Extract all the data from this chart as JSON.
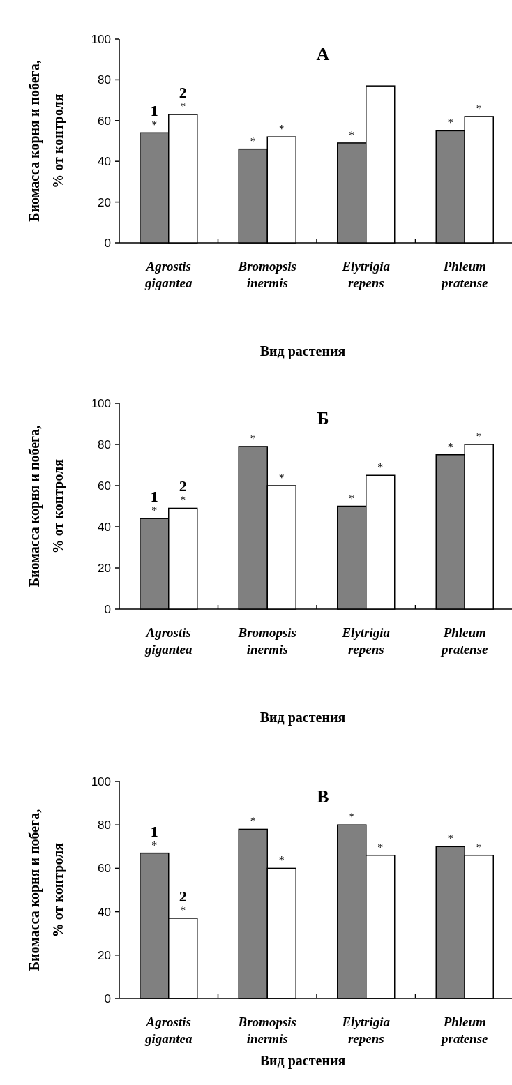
{
  "chart_data": [
    {
      "type": "bar",
      "title": "А",
      "categories": [
        "Agrostis gigantea",
        "Bromopsis inermis",
        "Elytrigia repens",
        "Phleum pratense"
      ],
      "xlabel": "Вид растения",
      "ylabel": "Биомасса корня и побега,\n% от контроля",
      "ylim": [
        0,
        100
      ],
      "yticks": [
        0,
        20,
        40,
        60,
        80,
        100
      ],
      "series": [
        {
          "name": "1",
          "color": "#808080",
          "values": [
            54,
            46,
            49,
            55
          ],
          "value_labels": [
            "*",
            "*",
            "*",
            "*"
          ]
        },
        {
          "name": "2",
          "color": "#ffffff",
          "values": [
            63,
            52,
            77,
            62
          ],
          "value_labels": [
            "*",
            "*",
            null,
            "*"
          ]
        }
      ]
    },
    {
      "type": "bar",
      "title": "Б",
      "categories": [
        "Agrostis gigantea",
        "Bromopsis inermis",
        "Elytrigia repens",
        "Phleum pratense"
      ],
      "xlabel": "Вид растения",
      "ylabel": "Биомасса корня и побега,\n% от контроля",
      "ylim": [
        0,
        100
      ],
      "yticks": [
        0,
        20,
        40,
        60,
        80,
        100
      ],
      "series": [
        {
          "name": "1",
          "color": "#808080",
          "values": [
            44,
            79,
            50,
            75
          ],
          "value_labels": [
            "*",
            "*",
            "*",
            "*"
          ]
        },
        {
          "name": "2",
          "color": "#ffffff",
          "values": [
            49,
            60,
            65,
            80
          ],
          "value_labels": [
            "*",
            "*",
            "*",
            "*"
          ]
        }
      ]
    },
    {
      "type": "bar",
      "title": "В",
      "categories": [
        "Agrostis gigantea",
        "Bromopsis inermis",
        "Elytrigia repens",
        "Phleum pratense"
      ],
      "xlabel": "Вид растения",
      "ylabel": "Биомасса корня и побега,\n% от контроля",
      "ylim": [
        0,
        100
      ],
      "yticks": [
        0,
        20,
        40,
        60,
        80,
        100
      ],
      "series": [
        {
          "name": "1",
          "color": "#808080",
          "values": [
            67,
            78,
            80,
            70
          ],
          "value_labels": [
            "*",
            "*",
            "*",
            "*"
          ]
        },
        {
          "name": "2",
          "color": "#ffffff",
          "values": [
            37,
            60,
            66,
            66
          ],
          "value_labels": [
            "*",
            "*",
            "*",
            "*"
          ]
        }
      ]
    }
  ]
}
